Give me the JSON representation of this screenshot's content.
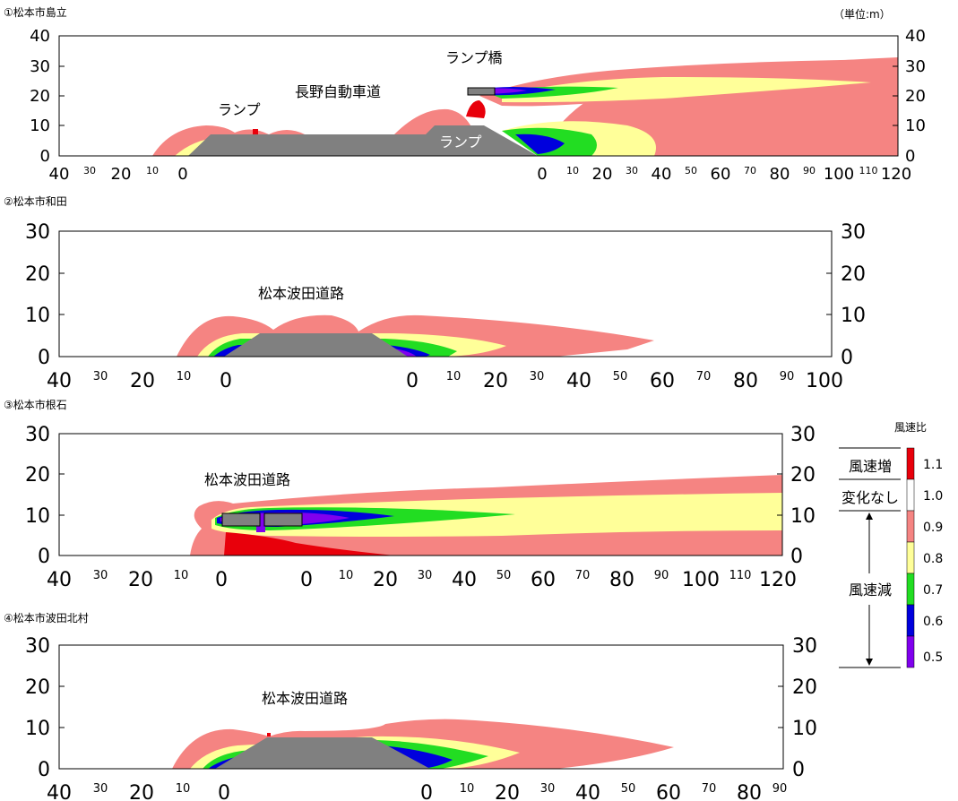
{
  "unit_note": "（単位:m）",
  "colors": {
    "increase": "#e8000b",
    "none": "#ffffff",
    "r09": "#f58482",
    "r08": "#ffff99",
    "r07": "#22dd22",
    "r06": "#0000dd",
    "r05": "#8000ee",
    "structure": "#808080"
  },
  "legend": {
    "title": "風速比",
    "increase_label": "風速増",
    "no_change_label": "変化なし",
    "decrease_label": "風速減",
    "levels": [
      {
        "value": "1.1",
        "color": "#e8000b"
      },
      {
        "value": "1.0",
        "color": "#ffffff"
      },
      {
        "value": "0.9",
        "color": "#f58482"
      },
      {
        "value": "0.8",
        "color": "#ffff99"
      },
      {
        "value": "0.7",
        "color": "#22dd22"
      },
      {
        "value": "0.6",
        "color": "#0000dd"
      },
      {
        "value": "0.5",
        "color": "#8000ee"
      }
    ]
  },
  "panels": [
    {
      "title": "①松本市島立",
      "y_ticks": [
        "0",
        "10",
        "20",
        "30",
        "40"
      ],
      "x_ticks_left": [
        {
          "label": "40",
          "big": true
        },
        {
          "label": "30",
          "big": false
        },
        {
          "label": "20",
          "big": true
        },
        {
          "label": "10",
          "big": false
        },
        {
          "label": "0",
          "big": true
        }
      ],
      "x_ticks_right": [
        {
          "label": "0",
          "big": true
        },
        {
          "label": "10",
          "big": false
        },
        {
          "label": "20",
          "big": true
        },
        {
          "label": "30",
          "big": false
        },
        {
          "label": "40",
          "big": true
        },
        {
          "label": "50",
          "big": false
        },
        {
          "label": "60",
          "big": true
        },
        {
          "label": "70",
          "big": false
        },
        {
          "label": "80",
          "big": true
        },
        {
          "label": "90",
          "big": false
        },
        {
          "label": "100",
          "big": true
        },
        {
          "label": "110",
          "big": false
        },
        {
          "label": "120",
          "big": true
        }
      ],
      "annotations": [
        "ランプ",
        "長野自動車道",
        "ランプ橋",
        "ランプ"
      ]
    },
    {
      "title": "②松本市和田",
      "y_ticks": [
        "0",
        "10",
        "20",
        "30"
      ],
      "x_ticks_left": [
        {
          "label": "40",
          "big": true
        },
        {
          "label": "30",
          "big": false
        },
        {
          "label": "20",
          "big": true
        },
        {
          "label": "10",
          "big": false
        },
        {
          "label": "0",
          "big": true
        }
      ],
      "x_ticks_right": [
        {
          "label": "0",
          "big": true
        },
        {
          "label": "10",
          "big": false
        },
        {
          "label": "20",
          "big": true
        },
        {
          "label": "30",
          "big": false
        },
        {
          "label": "40",
          "big": true
        },
        {
          "label": "50",
          "big": false
        },
        {
          "label": "60",
          "big": true
        },
        {
          "label": "70",
          "big": false
        },
        {
          "label": "80",
          "big": true
        },
        {
          "label": "90",
          "big": false
        },
        {
          "label": "100",
          "big": true
        }
      ],
      "annotations": [
        "松本波田道路"
      ]
    },
    {
      "title": "③松本市根石",
      "y_ticks": [
        "0",
        "10",
        "20",
        "30"
      ],
      "x_ticks_left": [
        {
          "label": "40",
          "big": true
        },
        {
          "label": "30",
          "big": false
        },
        {
          "label": "20",
          "big": true
        },
        {
          "label": "10",
          "big": false
        },
        {
          "label": "0",
          "big": true
        }
      ],
      "x_ticks_right": [
        {
          "label": "0",
          "big": true
        },
        {
          "label": "10",
          "big": false
        },
        {
          "label": "20",
          "big": true
        },
        {
          "label": "30",
          "big": false
        },
        {
          "label": "40",
          "big": true
        },
        {
          "label": "50",
          "big": false
        },
        {
          "label": "60",
          "big": true
        },
        {
          "label": "70",
          "big": false
        },
        {
          "label": "80",
          "big": true
        },
        {
          "label": "90",
          "big": false
        },
        {
          "label": "100",
          "big": true
        },
        {
          "label": "110",
          "big": false
        },
        {
          "label": "120",
          "big": true
        }
      ],
      "annotations": [
        "松本波田道路"
      ]
    },
    {
      "title": "④松本市波田北村",
      "y_ticks": [
        "0",
        "10",
        "20",
        "30"
      ],
      "x_ticks_left": [
        {
          "label": "40",
          "big": true
        },
        {
          "label": "30",
          "big": false
        },
        {
          "label": "20",
          "big": true
        },
        {
          "label": "10",
          "big": false
        },
        {
          "label": "0",
          "big": true
        }
      ],
      "x_ticks_right": [
        {
          "label": "0",
          "big": true
        },
        {
          "label": "10",
          "big": false
        },
        {
          "label": "20",
          "big": true
        },
        {
          "label": "30",
          "big": false
        },
        {
          "label": "40",
          "big": true
        },
        {
          "label": "50",
          "big": false
        },
        {
          "label": "60",
          "big": true
        },
        {
          "label": "70",
          "big": false
        },
        {
          "label": "80",
          "big": true
        },
        {
          "label": "90",
          "big": false
        }
      ],
      "annotations": [
        "松本波田道路"
      ]
    }
  ]
}
